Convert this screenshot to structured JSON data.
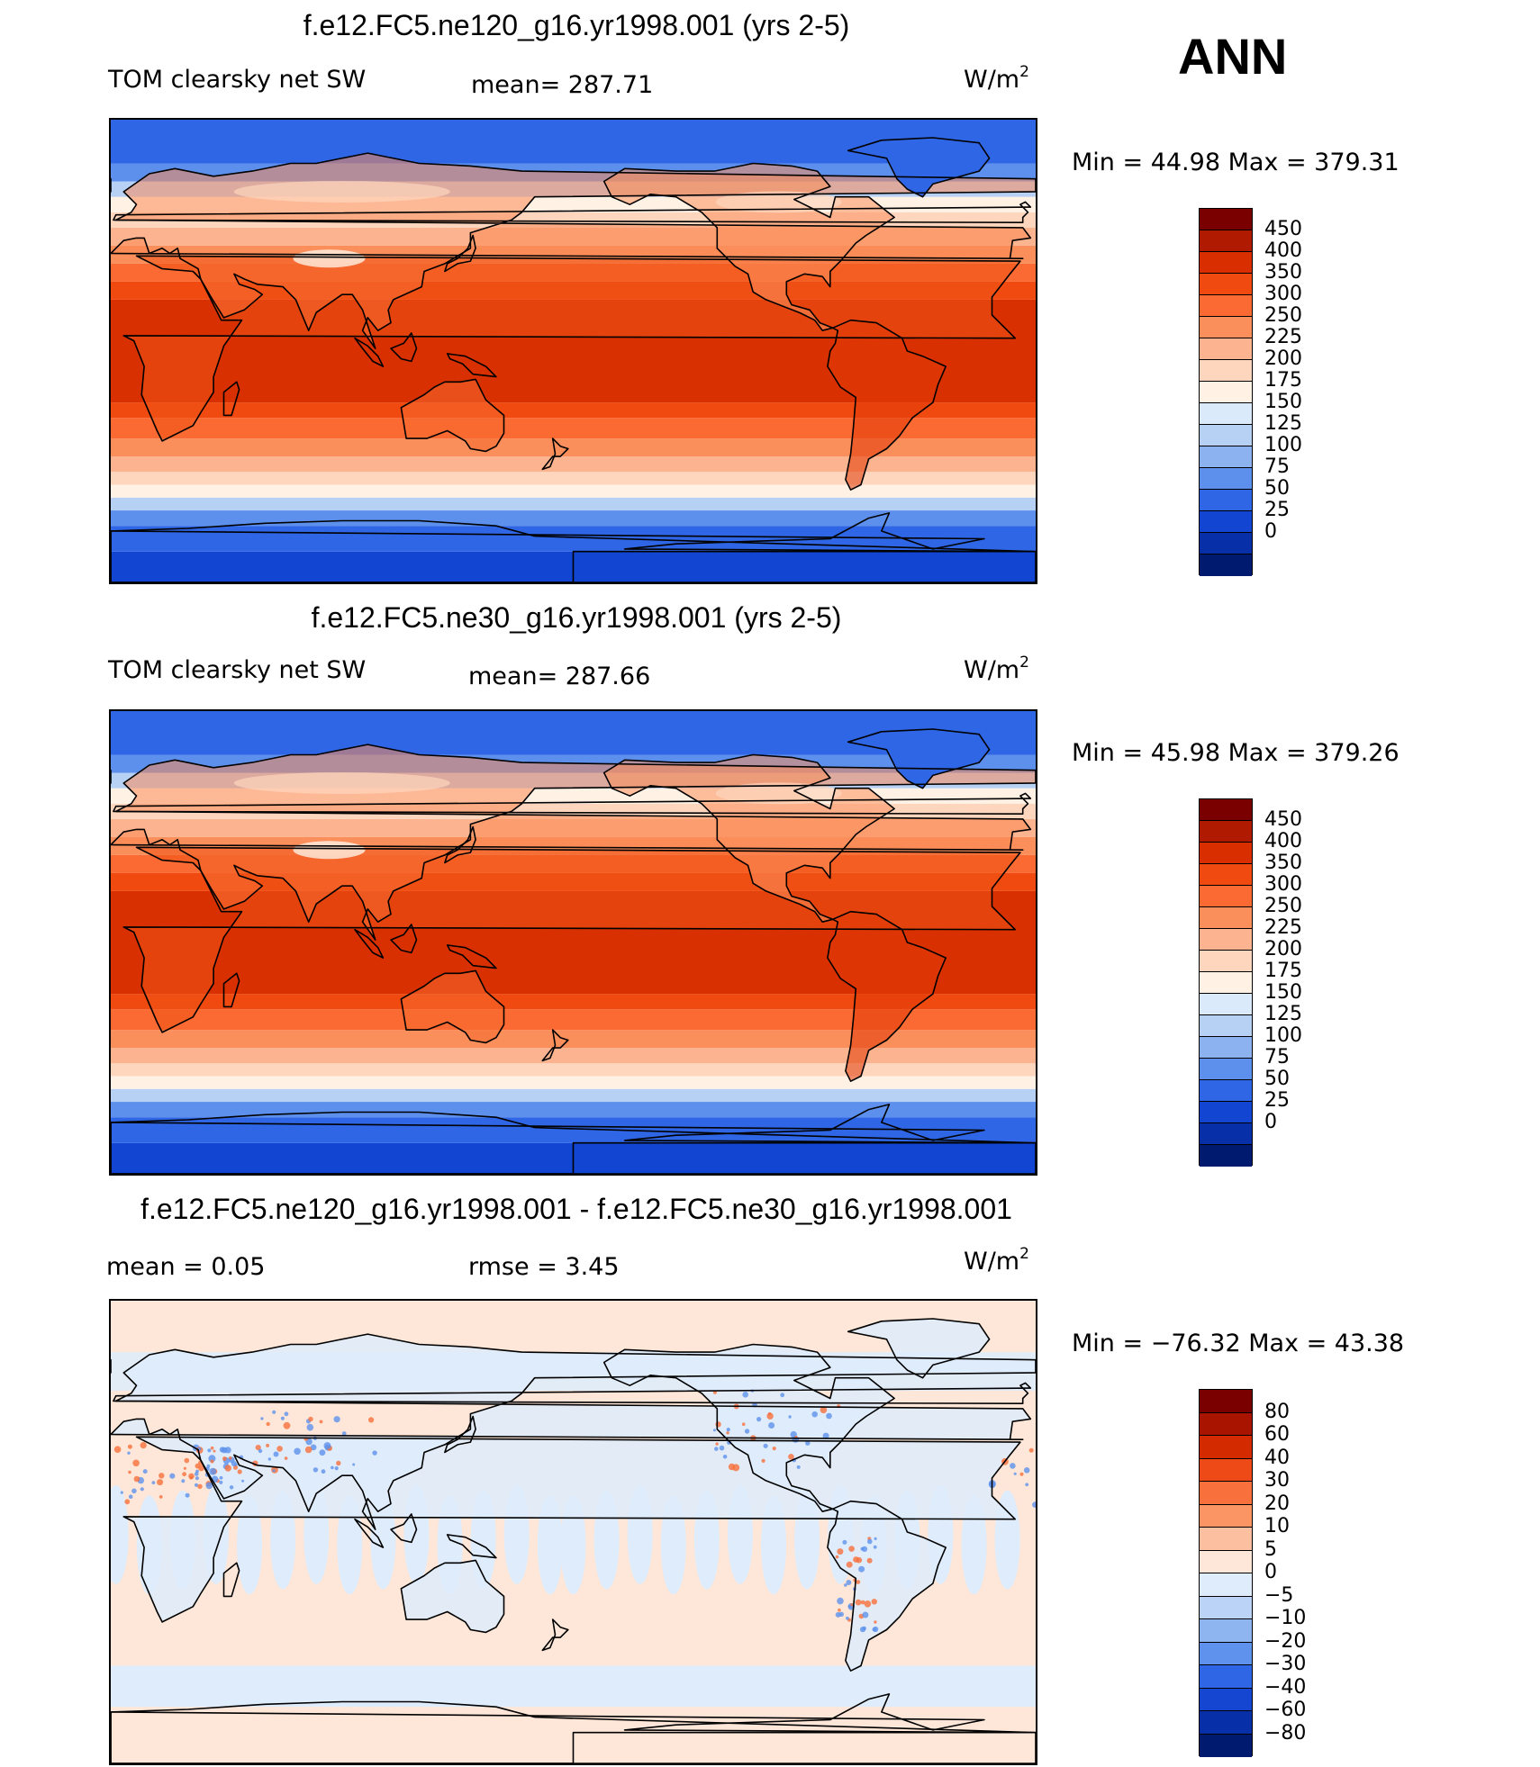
{
  "season": "ANN",
  "panels": [
    {
      "title": "f.e12.FC5.ne120_g16.yr1998.001 (yrs 2-5)",
      "left_label": "TOM clearsky net SW",
      "center_label": "mean=  287.71",
      "right_label": "",
      "units": "W/m",
      "units_sup": "2",
      "min_max": "Min =   44.98  Max  =  379.31",
      "colorbar": {
        "labels": [
          "450",
          "400",
          "350",
          "300",
          "250",
          "225",
          "200",
          "175",
          "150",
          "125",
          "100",
          "75",
          "50",
          "25",
          "0"
        ],
        "colors": [
          "#7a0000",
          "#b01a00",
          "#d82e00",
          "#f04a10",
          "#fb6a32",
          "#fb8f5c",
          "#fcb38f",
          "#fdd6bd",
          "#fff1e4",
          "#dbeafb",
          "#b7d1f5",
          "#8cb3f0",
          "#5c90ec",
          "#2f66e6",
          "#1246d2",
          "#062fa8",
          "#001a70"
        ]
      },
      "variant": "full"
    },
    {
      "title": "f.e12.FC5.ne30_g16.yr1998.001 (yrs 2-5)",
      "left_label": "TOM clearsky net SW",
      "center_label": "mean=  287.66",
      "right_label": "",
      "units": "W/m",
      "units_sup": "2",
      "min_max": "Min =   45.98  Max  =  379.26",
      "colorbar": {
        "labels": [
          "450",
          "400",
          "350",
          "300",
          "250",
          "225",
          "200",
          "175",
          "150",
          "125",
          "100",
          "75",
          "50",
          "25",
          "0"
        ],
        "colors": [
          "#7a0000",
          "#b01a00",
          "#d82e00",
          "#f04a10",
          "#fb6a32",
          "#fb8f5c",
          "#fcb38f",
          "#fdd6bd",
          "#fff1e4",
          "#dbeafb",
          "#b7d1f5",
          "#8cb3f0",
          "#5c90ec",
          "#2f66e6",
          "#1246d2",
          "#062fa8",
          "#001a70"
        ]
      },
      "variant": "full"
    },
    {
      "title": "f.e12.FC5.ne120_g16.yr1998.001 - f.e12.FC5.ne30_g16.yr1998.001",
      "left_label": "mean =    0.05",
      "center_label": "rmse =    3.45",
      "right_label": "",
      "units": "W/m",
      "units_sup": "2",
      "min_max": "Min = −76.32  Max  =   43.38",
      "colorbar": {
        "labels": [
          "80",
          "60",
          "40",
          "30",
          "20",
          "10",
          "5",
          "0",
          "−5",
          "−10",
          "−20",
          "−30",
          "−40",
          "−60",
          "−80"
        ],
        "colors": [
          "#7a0000",
          "#a81400",
          "#d42a00",
          "#ee4a18",
          "#f8703c",
          "#fb9664",
          "#fcc0a0",
          "#fee7d8",
          "#deecfb",
          "#bad3f6",
          "#8fb5f0",
          "#5e92ec",
          "#2e66e6",
          "#1446d2",
          "#062fa8",
          "#001a70"
        ]
      },
      "variant": "diff"
    }
  ]
}
